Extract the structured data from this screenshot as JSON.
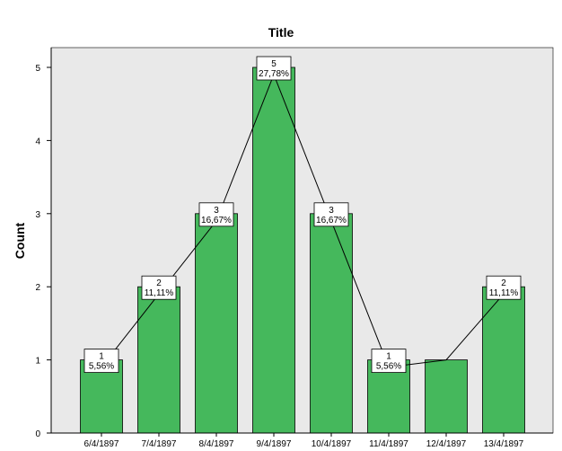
{
  "chart_data": {
    "type": "bar",
    "title": "Title",
    "xlabel": "",
    "ylabel": "Count",
    "categories": [
      "6/4/1897",
      "7/4/1897",
      "8/4/1897",
      "9/4/1897",
      "10/4/1897",
      "11/4/1897",
      "12/4/1897",
      "13/4/1897"
    ],
    "values": [
      1,
      2,
      3,
      5,
      3,
      1,
      1,
      2
    ],
    "labels": [
      {
        "count": "1",
        "percent": "5,56%"
      },
      {
        "count": "2",
        "percent": "11,11%"
      },
      {
        "count": "3",
        "percent": "16,67%"
      },
      {
        "count": "5",
        "percent": "27,78%"
      },
      {
        "count": "3",
        "percent": "16,67%"
      },
      {
        "count": "1",
        "percent": "5,56%"
      },
      null,
      {
        "count": "2",
        "percent": "11,11%"
      }
    ],
    "ylim": [
      0,
      5
    ],
    "yticks": [
      0,
      1,
      2,
      3,
      4,
      5
    ],
    "colors": {
      "bar": "#45b85c",
      "bar_stroke": "#000000",
      "plot_bg": "#e9e9e9",
      "line": "#000000",
      "label_bg": "#ffffff"
    },
    "grid": false,
    "legend": "none",
    "connecting_line": true
  }
}
